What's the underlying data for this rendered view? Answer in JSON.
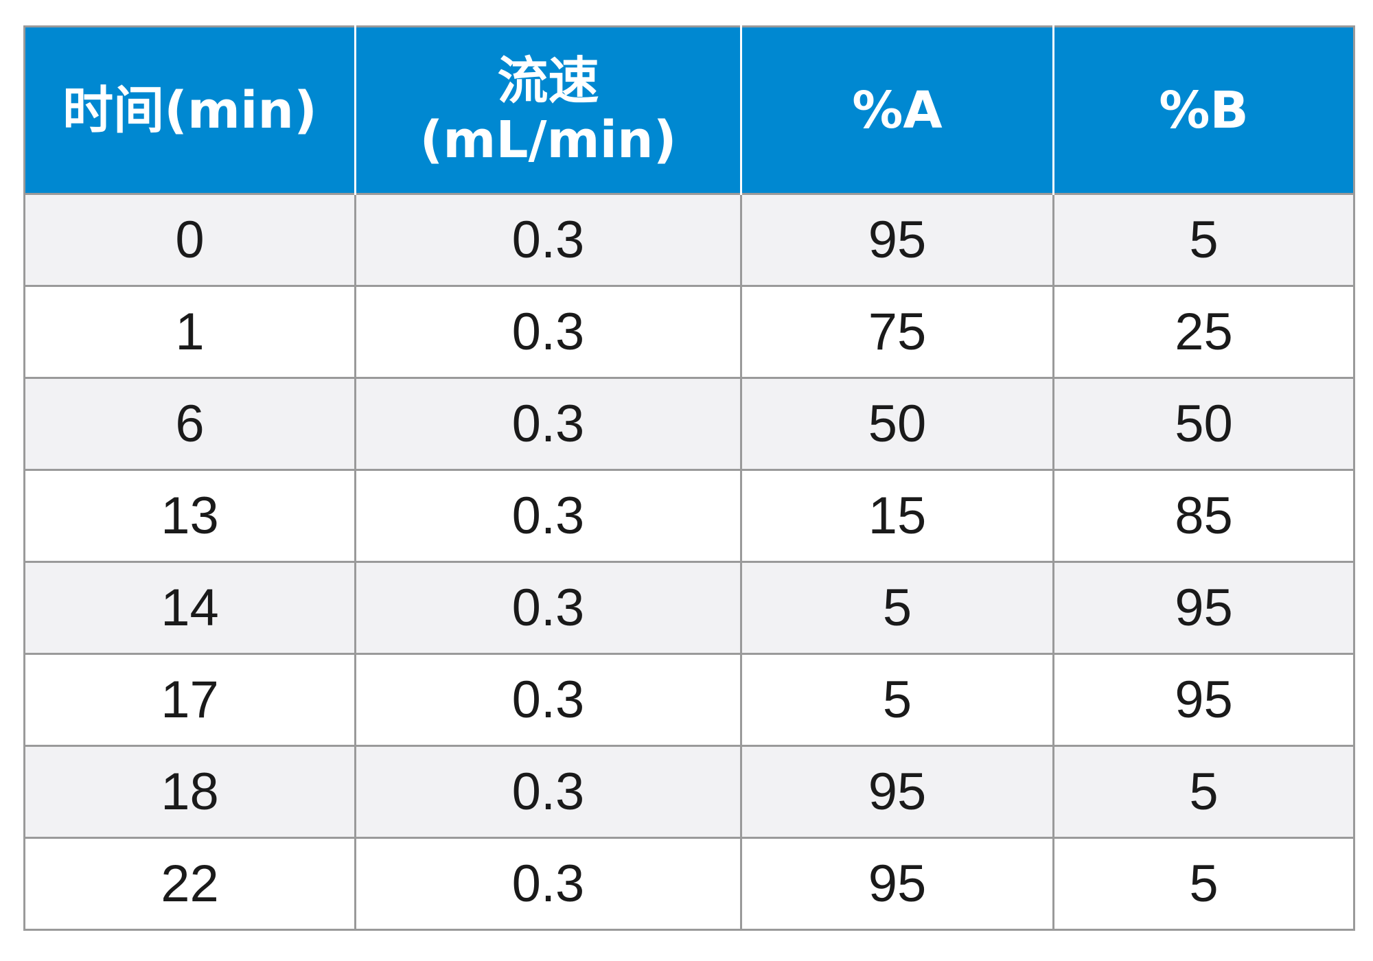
{
  "table": {
    "headers": {
      "time": "时间(min)",
      "flow_line1": "流速",
      "flow_line2": "(mL/min)",
      "pct_a": "%A",
      "pct_b": "%B"
    },
    "colors": {
      "header_bg": "#0088d1",
      "header_text": "#ffffff",
      "row_shaded": "#f2f2f4",
      "row_plain": "#ffffff",
      "border": "#9a9a9a"
    },
    "rows": [
      {
        "time": "0",
        "flow": "0.3",
        "a": "95",
        "b": "5"
      },
      {
        "time": "1",
        "flow": "0.3",
        "a": "75",
        "b": "25"
      },
      {
        "time": "6",
        "flow": "0.3",
        "a": "50",
        "b": "50"
      },
      {
        "time": "13",
        "flow": "0.3",
        "a": "15",
        "b": "85"
      },
      {
        "time": "14",
        "flow": "0.3",
        "a": "5",
        "b": "95"
      },
      {
        "time": "17",
        "flow": "0.3",
        "a": "5",
        "b": "95"
      },
      {
        "time": "18",
        "flow": "0.3",
        "a": "95",
        "b": "5"
      },
      {
        "time": "22",
        "flow": "0.3",
        "a": "95",
        "b": "5"
      }
    ]
  }
}
